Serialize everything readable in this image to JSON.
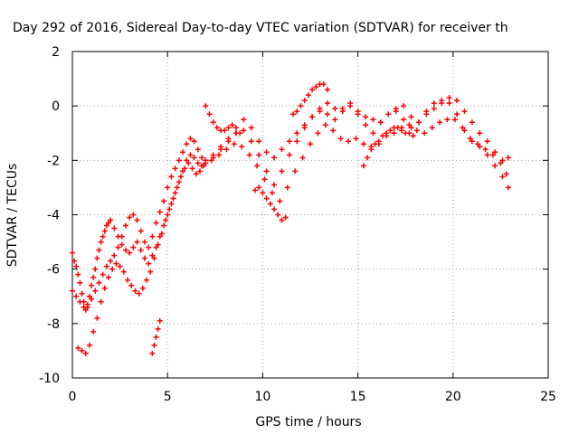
{
  "chart_data": {
    "type": "scatter",
    "title": "Day 292 of 2016, Sidereal Day-to-day VTEC variation (SDTVAR) for receiver th",
    "xlabel": "GPS time / hours",
    "ylabel": "SDTVAR / TECUs",
    "xlim": [
      0,
      25
    ],
    "ylim": [
      -10,
      2
    ],
    "xticks": [
      0,
      5,
      10,
      15,
      20,
      25
    ],
    "yticks": [
      -10,
      -8,
      -6,
      -4,
      -2,
      0,
      2
    ],
    "grid": true,
    "marker": "+",
    "color": "#ff0000",
    "series": [
      {
        "x": [
          0.0,
          0.1,
          0.2,
          0.3,
          0.4,
          0.5,
          0.6,
          0.7,
          0.8,
          0.9,
          1.0,
          1.1,
          1.2,
          1.3,
          1.4,
          1.5,
          1.6,
          1.7,
          1.8,
          1.9,
          2.0,
          2.2,
          2.4,
          2.6,
          2.8,
          3.0,
          3.2,
          3.4,
          3.6,
          3.8,
          4.0,
          4.2,
          4.4,
          4.6,
          4.8,
          5.0,
          5.2,
          5.4,
          5.6,
          5.8,
          6.0,
          6.2,
          6.4,
          6.6,
          6.8,
          7.0,
          7.4,
          7.8,
          8.2,
          8.6,
          9.0,
          9.4,
          9.8,
          10.2,
          10.6,
          11.0,
          11.4,
          11.8,
          12.2,
          12.6,
          13.0,
          13.4,
          13.8,
          14.2,
          14.6,
          15.0,
          15.4,
          15.8,
          16.2,
          16.6,
          17.0,
          17.4,
          17.8,
          18.2,
          18.6,
          19.0,
          19.4,
          19.8,
          20.2,
          20.6,
          21.0,
          21.4,
          21.8,
          22.2,
          22.6,
          22.9
        ],
        "y": [
          -5.4,
          -5.7,
          -5.9,
          -6.2,
          -6.5,
          -6.9,
          -7.2,
          -7.5,
          -7.4,
          -7.0,
          -6.6,
          -6.3,
          -6.0,
          -5.6,
          -5.3,
          -5.0,
          -4.8,
          -4.6,
          -4.4,
          -4.3,
          -4.2,
          -4.5,
          -4.8,
          -5.1,
          -5.3,
          -5.4,
          -5.2,
          -5.0,
          -5.3,
          -5.6,
          -5.8,
          -5.5,
          -5.2,
          -4.8,
          -4.4,
          -4.0,
          -3.6,
          -3.2,
          -2.8,
          -2.4,
          -2.0,
          -1.8,
          -1.9,
          -2.1,
          -2.2,
          -2.1,
          -1.9,
          -1.6,
          -1.3,
          -1.0,
          -0.9,
          -1.3,
          -1.8,
          -2.4,
          -2.9,
          -2.4,
          -1.8,
          -1.3,
          -0.8,
          -0.4,
          -0.1,
          -0.3,
          -0.5,
          -0.1,
          0.0,
          -0.3,
          -0.7,
          -1.0,
          -0.6,
          -0.3,
          -0.1,
          0.0,
          -0.4,
          -0.6,
          -0.2,
          0.1,
          0.2,
          0.1,
          -0.3,
          -0.9,
          -1.3,
          -1.5,
          -1.8,
          -2.2,
          -2.6,
          -3.0
        ]
      },
      {
        "x": [
          0.0,
          0.2,
          0.4,
          0.6,
          0.8,
          1.0,
          1.2,
          1.4,
          1.6,
          1.8,
          2.0,
          2.2,
          2.4,
          2.6,
          2.8,
          3.0,
          3.2,
          3.4,
          3.6,
          3.8,
          4.0,
          4.2,
          4.4,
          4.6,
          4.8,
          5.0,
          5.2,
          5.4,
          5.6,
          5.8,
          6.0,
          6.2,
          6.4,
          6.6,
          6.8,
          7.0,
          7.4,
          7.8,
          8.2,
          8.6,
          9.0,
          9.4,
          9.8,
          10.2,
          10.6,
          11.0,
          11.4,
          11.8,
          12.2,
          12.6,
          13.0,
          13.4,
          13.8,
          14.2,
          14.6,
          15.0,
          15.4,
          15.8,
          16.2,
          16.6,
          17.0,
          17.4,
          17.8,
          18.2,
          18.6,
          19.0,
          19.4,
          19.8,
          20.2,
          20.6,
          21.0,
          21.4,
          21.8,
          22.2,
          22.6,
          22.9
        ],
        "y": [
          -6.8,
          -7.0,
          -7.2,
          -7.4,
          -7.3,
          -7.1,
          -6.8,
          -6.5,
          -6.2,
          -5.9,
          -5.7,
          -5.5,
          -5.2,
          -4.8,
          -4.4,
          -4.1,
          -4.0,
          -4.2,
          -4.6,
          -5.0,
          -5.2,
          -4.8,
          -4.3,
          -3.9,
          -3.5,
          -3.0,
          -2.6,
          -2.3,
          -2.0,
          -1.7,
          -1.4,
          -1.2,
          -1.3,
          -1.6,
          -1.9,
          -2.0,
          -1.8,
          -1.5,
          -1.2,
          -1.0,
          -0.5,
          -0.8,
          -1.3,
          -1.7,
          -1.9,
          -1.6,
          -1.3,
          -1.0,
          -0.7,
          -0.4,
          -0.2,
          0.1,
          -0.1,
          -0.2,
          0.1,
          -0.2,
          -0.4,
          -0.5,
          -0.6,
          -0.3,
          -0.2,
          -0.5,
          -0.8,
          -0.6,
          -0.3,
          -0.1,
          0.1,
          0.3,
          0.2,
          -0.2,
          -0.6,
          -1.0,
          -1.3,
          -1.7,
          -2.0,
          -1.9
        ]
      },
      {
        "x": [
          0.3,
          0.5,
          0.7,
          0.9,
          1.1,
          1.3,
          1.5,
          1.7,
          1.9,
          2.1,
          2.3,
          2.5,
          2.7,
          2.9,
          3.1,
          3.3,
          3.5,
          3.7,
          3.9,
          4.1,
          4.3,
          4.5,
          4.7,
          4.9,
          5.1,
          5.3,
          5.5,
          5.7,
          5.9,
          6.1,
          6.3,
          6.5,
          6.7,
          6.9,
          7.3,
          7.7,
          8.1,
          8.5,
          8.9,
          9.3,
          9.7,
          10.1,
          10.5,
          10.9,
          11.3,
          11.7,
          12.1,
          12.5,
          12.9,
          13.3,
          13.7,
          14.1,
          14.5,
          14.9,
          15.3,
          15.7,
          16.1,
          16.5,
          16.9,
          17.3,
          17.7,
          18.1,
          18.5,
          18.9,
          19.3,
          19.7,
          20.1,
          20.5,
          20.9,
          21.3,
          21.7,
          22.1,
          22.5,
          22.8
        ],
        "y": [
          -8.9,
          -9.0,
          -9.1,
          -8.8,
          -8.3,
          -7.8,
          -7.2,
          -6.7,
          -6.3,
          -6.0,
          -5.8,
          -5.9,
          -6.1,
          -6.4,
          -6.6,
          -6.8,
          -6.9,
          -6.7,
          -6.4,
          -6.1,
          -5.6,
          -5.1,
          -4.7,
          -4.2,
          -3.8,
          -3.4,
          -3.0,
          -2.6,
          -2.3,
          -2.1,
          -2.3,
          -2.5,
          -2.4,
          -2.2,
          -2.0,
          -1.8,
          -1.6,
          -1.4,
          -1.5,
          -1.8,
          -2.2,
          -2.7,
          -3.2,
          -3.5,
          -3.0,
          -2.4,
          -1.9,
          -1.4,
          -1.0,
          -0.7,
          -0.9,
          -1.2,
          -1.3,
          -1.2,
          -1.4,
          -1.5,
          -1.4,
          -1.1,
          -1.0,
          -0.8,
          -0.7,
          -0.9,
          -1.0,
          -0.8,
          -0.6,
          -0.5,
          -0.5,
          -0.8,
          -1.2,
          -1.4,
          -1.6,
          -1.8,
          -2.1,
          -2.5
        ]
      },
      {
        "x": [
          4.2,
          4.3,
          4.4,
          4.5,
          4.6
        ],
        "y": [
          -9.1,
          -8.8,
          -8.5,
          -8.2,
          -7.9
        ]
      },
      {
        "x": [
          9.6,
          9.8,
          10.0,
          10.2,
          10.4,
          10.6,
          10.8,
          11.0,
          11.2
        ],
        "y": [
          -3.1,
          -3.0,
          -3.2,
          -3.4,
          -3.6,
          -3.8,
          -4.0,
          -4.2,
          -4.1
        ]
      },
      {
        "x": [
          11.6,
          11.8,
          12.0,
          12.2,
          12.4,
          12.6,
          12.8,
          13.0,
          13.2,
          13.4
        ],
        "y": [
          -0.3,
          -0.2,
          0.0,
          0.2,
          0.4,
          0.6,
          0.7,
          0.8,
          0.8,
          0.6
        ]
      },
      {
        "x": [
          15.3,
          15.5,
          15.7,
          15.9,
          16.1,
          16.3,
          16.5,
          16.7,
          16.9,
          17.1,
          17.3,
          17.5,
          17.7,
          17.9
        ],
        "y": [
          -2.2,
          -1.9,
          -1.6,
          -1.4,
          -1.3,
          -1.1,
          -1.0,
          -0.9,
          -0.8,
          -0.8,
          -0.9,
          -1.0,
          -1.0,
          -1.1
        ]
      },
      {
        "x": [
          7.0,
          7.2,
          7.4,
          7.6,
          7.8,
          8.0,
          8.2,
          8.4,
          8.6,
          8.8
        ],
        "y": [
          0.0,
          -0.3,
          -0.6,
          -0.8,
          -0.9,
          -0.9,
          -0.8,
          -0.7,
          -0.8,
          -1.0
        ]
      }
    ]
  }
}
